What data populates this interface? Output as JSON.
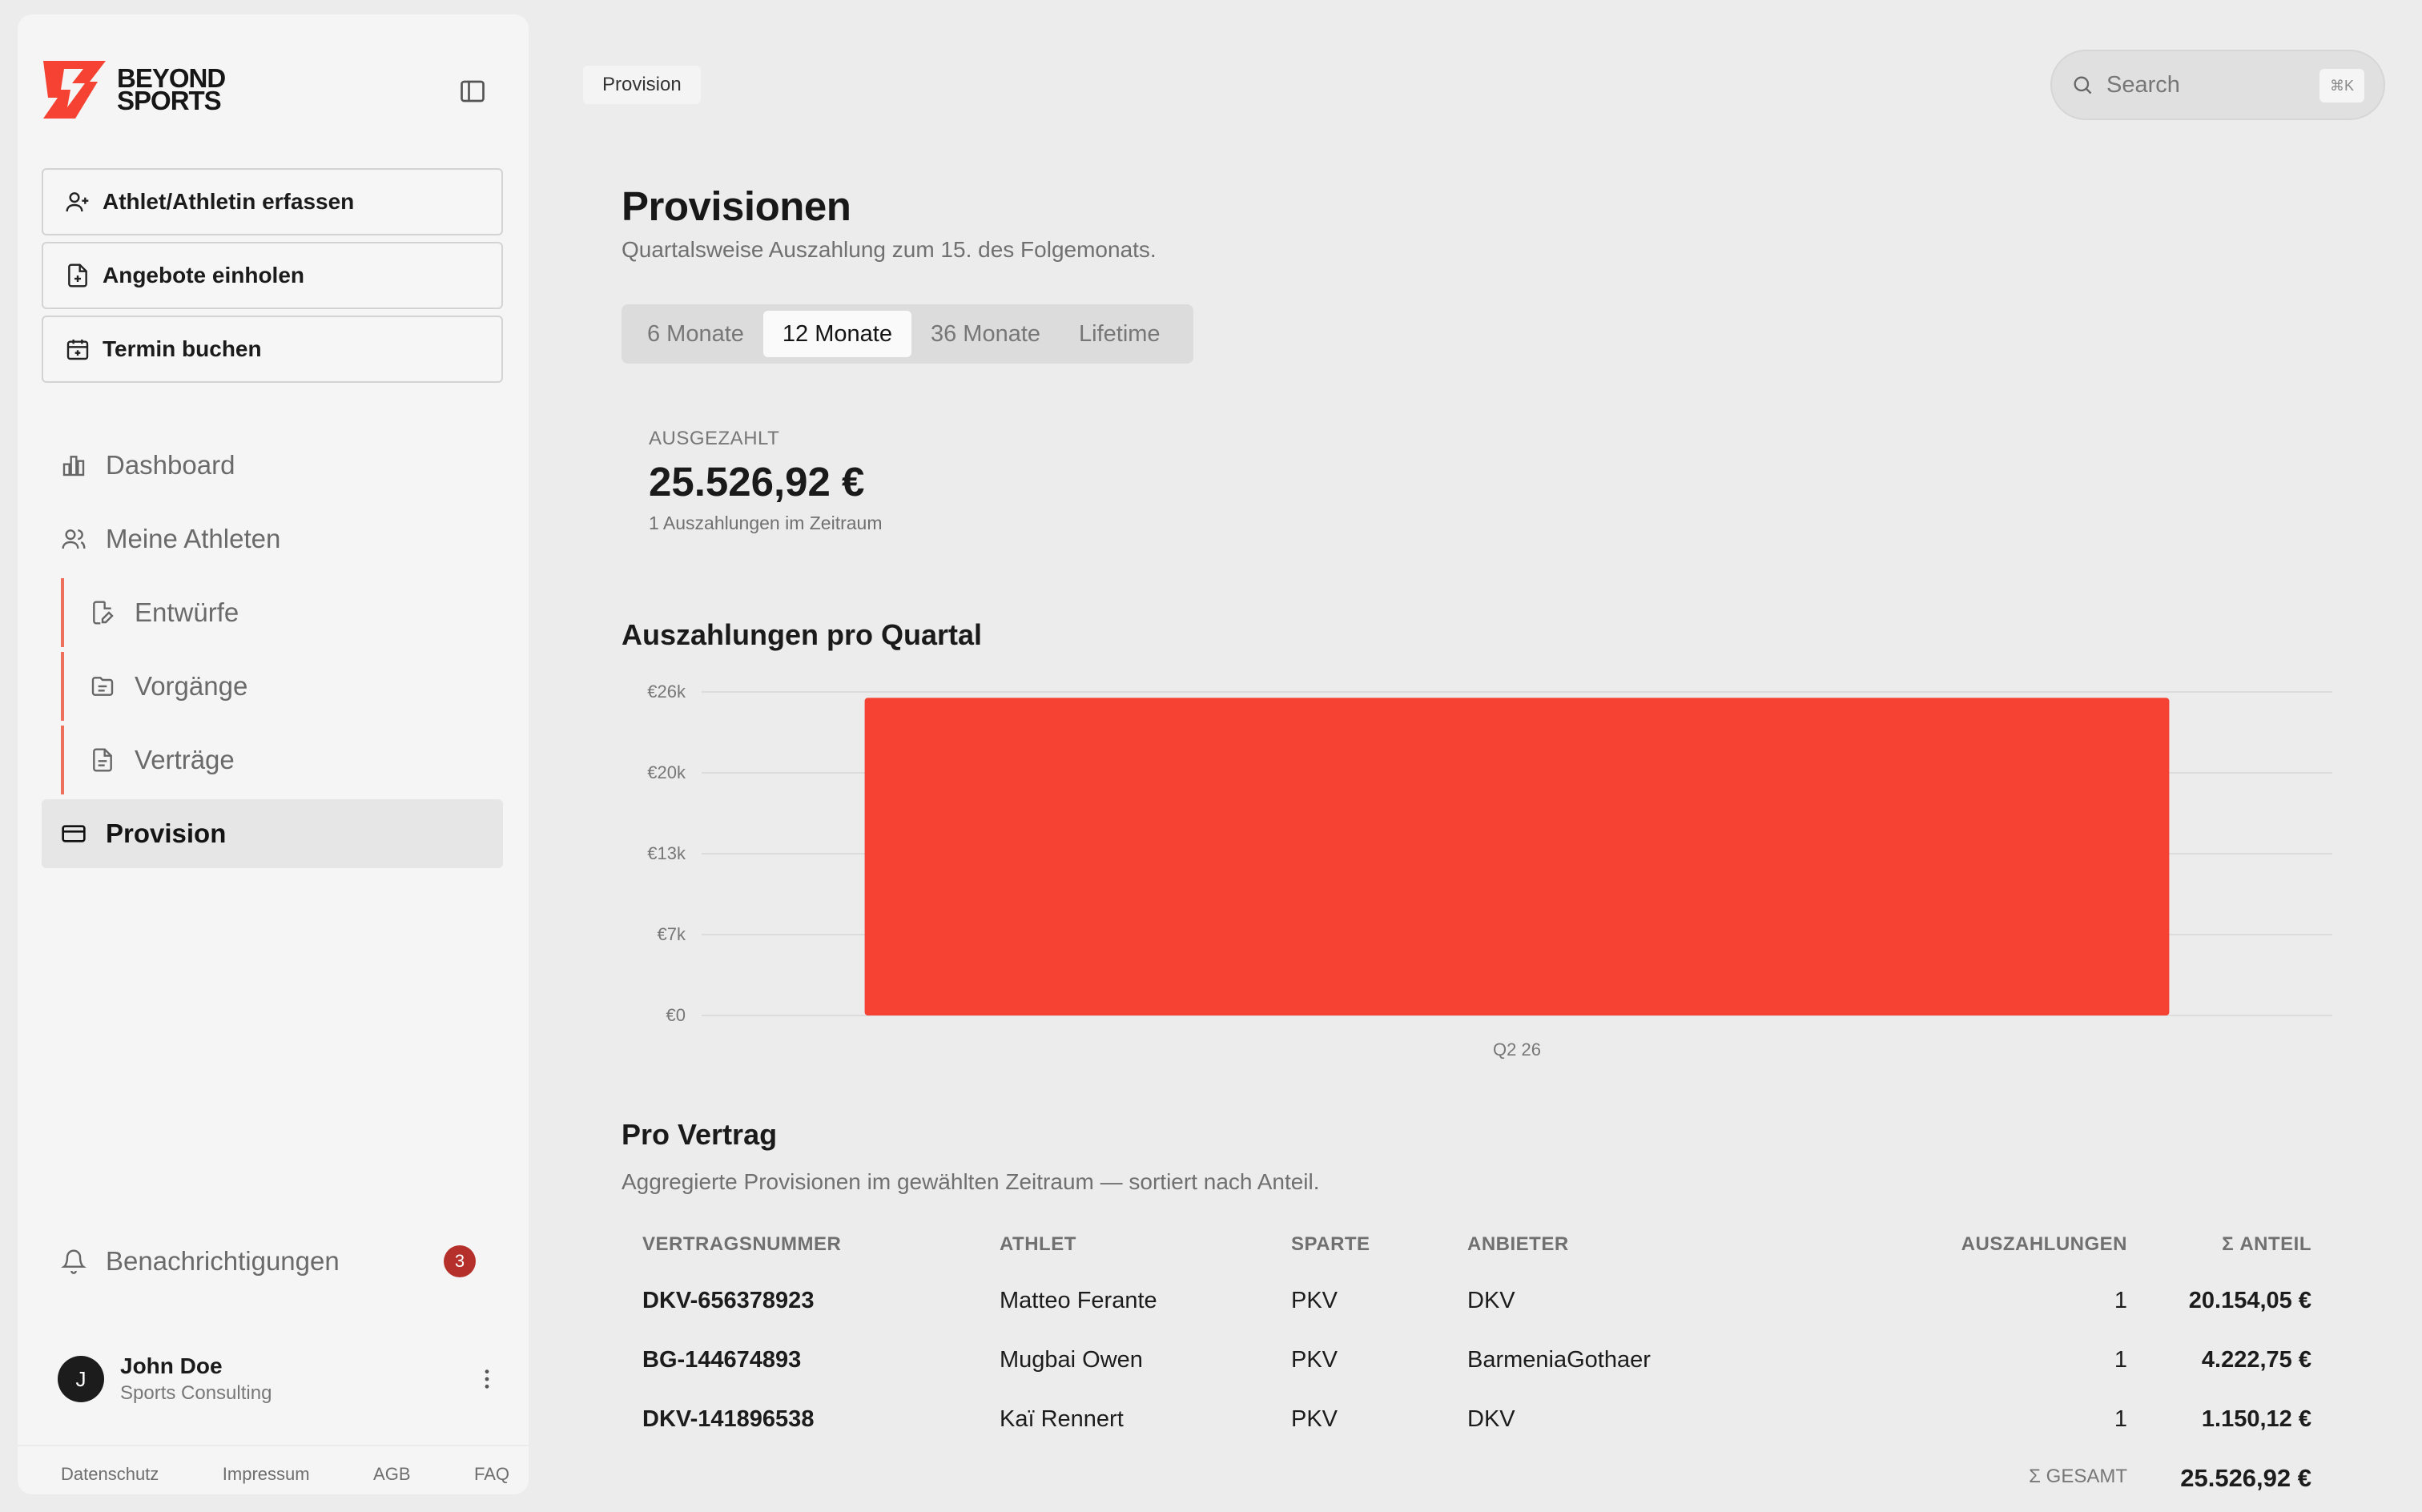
{
  "brand": {
    "line1": "BEYOND",
    "line2": "SPORTS",
    "accent": "#f54232"
  },
  "sidebar": {
    "actions": [
      {
        "label": "Athlet/Athletin erfassen",
        "icon": "user-plus-icon"
      },
      {
        "label": "Angebote einholen",
        "icon": "file-plus-icon"
      },
      {
        "label": "Termin buchen",
        "icon": "calendar-plus-icon"
      }
    ],
    "nav": [
      {
        "label": "Dashboard",
        "icon": "bar-chart-icon"
      },
      {
        "label": "Meine Athleten",
        "icon": "users-icon"
      },
      {
        "label": "Entwürfe",
        "icon": "file-edit-icon"
      },
      {
        "label": "Vorgänge",
        "icon": "folder-icon"
      },
      {
        "label": "Verträge",
        "icon": "file-text-icon"
      },
      {
        "label": "Provision",
        "icon": "credit-card-icon"
      }
    ],
    "notifications": {
      "label": "Benachrichtigungen",
      "count": "3"
    },
    "user": {
      "initial": "J",
      "name": "John Doe",
      "role": "Sports Consulting"
    },
    "footer": [
      "Datenschutz",
      "Impressum",
      "AGB",
      "FAQ"
    ]
  },
  "header": {
    "breadcrumb": "Provision",
    "search": {
      "placeholder": "Search",
      "shortcut": "⌘K"
    }
  },
  "page": {
    "title": "Provisionen",
    "subtitle": "Quartalsweise Auszahlung zum 15. des Folgemonats.",
    "tabs": [
      "6 Monate",
      "12 Monate",
      "36 Monate",
      "Lifetime"
    ],
    "active_tab": "12 Monate"
  },
  "kpi": {
    "label": "AUSGEZAHLT",
    "value": "25.526,92 €",
    "sub": "1 Auszahlungen im Zeitraum"
  },
  "chart_section": {
    "title": "Auszahlungen pro Quartal"
  },
  "chart_data": {
    "type": "bar",
    "title": "Auszahlungen pro Quartal",
    "categories": [
      "Q2 26"
    ],
    "values": [
      25526.92
    ],
    "ylim": [
      0,
      26000
    ],
    "yticks": [
      0,
      6500,
      13000,
      19500,
      26000
    ],
    "ytick_labels": [
      "€0",
      "€7k",
      "€13k",
      "€20k",
      "€26k"
    ],
    "grid": true,
    "bar_color": "#f54232",
    "xlabel": "",
    "ylabel": ""
  },
  "contracts": {
    "title": "Pro Vertrag",
    "subtitle": "Aggregierte Provisionen im gewählten Zeitraum — sortiert nach Anteil.",
    "columns": [
      "VERTRAGSNUMMER",
      "ATHLET",
      "SPARTE",
      "ANBIETER",
      "AUSZAHLUNGEN",
      "Σ ANTEIL"
    ],
    "rows": [
      {
        "number": "DKV-656378923",
        "athlete": "Matteo Ferante",
        "sparte": "PKV",
        "provider": "DKV",
        "payouts": "1",
        "share": "20.154,05 €"
      },
      {
        "number": "BG-144674893",
        "athlete": "Mugbai Owen",
        "sparte": "PKV",
        "provider": "BarmeniaGothaer",
        "payouts": "1",
        "share": "4.222,75 €"
      },
      {
        "number": "DKV-141896538",
        "athlete": "Kaï Rennert",
        "sparte": "PKV",
        "provider": "DKV",
        "payouts": "1",
        "share": "1.150,12 €"
      }
    ],
    "total_label": "Σ GESAMT",
    "total_value": "25.526,92 €"
  }
}
